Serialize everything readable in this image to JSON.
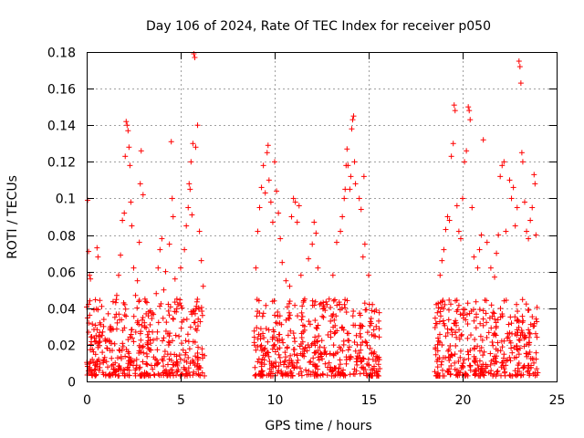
{
  "chart_data": {
    "type": "scatter",
    "title": "Day 106 of 2024, Rate Of TEC Index for receiver p050",
    "xlabel": "GPS time / hours",
    "ylabel": "ROTI / TECUs",
    "xlim": [
      0,
      25
    ],
    "ylim": [
      0,
      0.18
    ],
    "x_ticks": [
      0,
      5,
      10,
      15,
      20,
      25
    ],
    "x_tick_labels": [
      "0",
      "5",
      "10",
      "15",
      "20",
      "25"
    ],
    "y_ticks": [
      0,
      0.02,
      0.04,
      0.06,
      0.08,
      0.1,
      0.12,
      0.14,
      0.16,
      0.18
    ],
    "y_tick_labels": [
      "0",
      "0.02",
      "0.04",
      "0.06",
      "0.08",
      "0.1",
      "0.12",
      "0.14",
      "0.16",
      "0.18"
    ],
    "grid": true,
    "marker": "+",
    "color": "#ff0000",
    "observation_windows_hours": [
      [
        0,
        6.3
      ],
      [
        8.9,
        15.6
      ],
      [
        18.5,
        24
      ]
    ],
    "series": [
      {
        "name": "ROTI",
        "points": [
          [
            0.05,
            0.099
          ],
          [
            0.1,
            0.071
          ],
          [
            0.15,
            0.058
          ],
          [
            0.2,
            0.056
          ],
          [
            0.3,
            0.012
          ],
          [
            0.4,
            0.004
          ],
          [
            0.5,
            0.025
          ],
          [
            0.55,
            0.073
          ],
          [
            0.6,
            0.068
          ],
          [
            0.7,
            0.032
          ],
          [
            0.8,
            0.041
          ],
          [
            0.9,
            0.03
          ],
          [
            1.0,
            0.022
          ],
          [
            1.1,
            0.018
          ],
          [
            1.3,
            0.029
          ],
          [
            1.5,
            0.035
          ],
          [
            1.6,
            0.047
          ],
          [
            1.7,
            0.058
          ],
          [
            1.8,
            0.069
          ],
          [
            1.9,
            0.088
          ],
          [
            2.0,
            0.092
          ],
          [
            2.05,
            0.123
          ],
          [
            2.1,
            0.142
          ],
          [
            2.15,
            0.14
          ],
          [
            2.2,
            0.137
          ],
          [
            2.25,
            0.128
          ],
          [
            2.3,
            0.118
          ],
          [
            2.35,
            0.098
          ],
          [
            2.4,
            0.085
          ],
          [
            2.5,
            0.062
          ],
          [
            2.6,
            0.047
          ],
          [
            2.7,
            0.055
          ],
          [
            2.8,
            0.076
          ],
          [
            2.85,
            0.108
          ],
          [
            2.9,
            0.126
          ],
          [
            3.0,
            0.102
          ],
          [
            3.1,
            0.045
          ],
          [
            3.3,
            0.038
          ],
          [
            3.5,
            0.027
          ],
          [
            3.7,
            0.048
          ],
          [
            3.8,
            0.062
          ],
          [
            3.9,
            0.072
          ],
          [
            4.0,
            0.078
          ],
          [
            4.1,
            0.05
          ],
          [
            4.2,
            0.06
          ],
          [
            4.4,
            0.075
          ],
          [
            4.5,
            0.131
          ],
          [
            4.55,
            0.1
          ],
          [
            4.6,
            0.09
          ],
          [
            4.7,
            0.056
          ],
          [
            4.8,
            0.045
          ],
          [
            5.0,
            0.062
          ],
          [
            5.2,
            0.072
          ],
          [
            5.3,
            0.085
          ],
          [
            5.4,
            0.095
          ],
          [
            5.45,
            0.108
          ],
          [
            5.5,
            0.105
          ],
          [
            5.55,
            0.12
          ],
          [
            5.6,
            0.091
          ],
          [
            5.65,
            0.13
          ],
          [
            5.7,
            0.179
          ],
          [
            5.75,
            0.177
          ],
          [
            5.8,
            0.128
          ],
          [
            5.9,
            0.14
          ],
          [
            6.0,
            0.082
          ],
          [
            6.1,
            0.066
          ],
          [
            6.2,
            0.052
          ],
          [
            9.0,
            0.062
          ],
          [
            9.1,
            0.082
          ],
          [
            9.2,
            0.095
          ],
          [
            9.3,
            0.106
          ],
          [
            9.4,
            0.118
          ],
          [
            9.5,
            0.103
          ],
          [
            9.6,
            0.125
          ],
          [
            9.65,
            0.129
          ],
          [
            9.7,
            0.11
          ],
          [
            9.8,
            0.098
          ],
          [
            9.9,
            0.087
          ],
          [
            10.0,
            0.12
          ],
          [
            10.1,
            0.104
          ],
          [
            10.2,
            0.092
          ],
          [
            10.3,
            0.078
          ],
          [
            10.4,
            0.065
          ],
          [
            10.6,
            0.055
          ],
          [
            10.8,
            0.052
          ],
          [
            10.9,
            0.09
          ],
          [
            11.0,
            0.1
          ],
          [
            11.1,
            0.098
          ],
          [
            11.2,
            0.087
          ],
          [
            11.3,
            0.096
          ],
          [
            11.4,
            0.058
          ],
          [
            11.6,
            0.045
          ],
          [
            11.8,
            0.067
          ],
          [
            12.0,
            0.075
          ],
          [
            12.1,
            0.087
          ],
          [
            12.2,
            0.081
          ],
          [
            12.3,
            0.062
          ],
          [
            12.4,
            0.042
          ],
          [
            12.6,
            0.035
          ],
          [
            12.9,
            0.045
          ],
          [
            13.1,
            0.058
          ],
          [
            13.3,
            0.076
          ],
          [
            13.5,
            0.082
          ],
          [
            13.6,
            0.09
          ],
          [
            13.7,
            0.1
          ],
          [
            13.75,
            0.105
          ],
          [
            13.8,
            0.118
          ],
          [
            13.85,
            0.127
          ],
          [
            13.9,
            0.118
          ],
          [
            14.0,
            0.105
          ],
          [
            14.05,
            0.112
          ],
          [
            14.1,
            0.138
          ],
          [
            14.15,
            0.143
          ],
          [
            14.2,
            0.145
          ],
          [
            14.25,
            0.12
          ],
          [
            14.3,
            0.108
          ],
          [
            14.5,
            0.1
          ],
          [
            14.6,
            0.094
          ],
          [
            14.7,
            0.068
          ],
          [
            14.75,
            0.112
          ],
          [
            14.8,
            0.075
          ],
          [
            15.0,
            0.058
          ],
          [
            15.2,
            0.042
          ],
          [
            15.4,
            0.03
          ],
          [
            18.6,
            0.042
          ],
          [
            18.8,
            0.058
          ],
          [
            18.9,
            0.066
          ],
          [
            19.0,
            0.072
          ],
          [
            19.1,
            0.083
          ],
          [
            19.2,
            0.09
          ],
          [
            19.3,
            0.088
          ],
          [
            19.4,
            0.123
          ],
          [
            19.5,
            0.13
          ],
          [
            19.55,
            0.151
          ],
          [
            19.6,
            0.148
          ],
          [
            19.7,
            0.096
          ],
          [
            19.8,
            0.082
          ],
          [
            19.9,
            0.078
          ],
          [
            20.0,
            0.1
          ],
          [
            20.1,
            0.12
          ],
          [
            20.2,
            0.126
          ],
          [
            20.3,
            0.15
          ],
          [
            20.35,
            0.148
          ],
          [
            20.4,
            0.143
          ],
          [
            20.5,
            0.095
          ],
          [
            20.6,
            0.068
          ],
          [
            20.8,
            0.062
          ],
          [
            20.9,
            0.072
          ],
          [
            21.0,
            0.08
          ],
          [
            21.1,
            0.132
          ],
          [
            21.3,
            0.076
          ],
          [
            21.5,
            0.062
          ],
          [
            21.7,
            0.057
          ],
          [
            21.8,
            0.07
          ],
          [
            21.9,
            0.08
          ],
          [
            22.0,
            0.112
          ],
          [
            22.1,
            0.118
          ],
          [
            22.2,
            0.12
          ],
          [
            22.3,
            0.082
          ],
          [
            22.5,
            0.11
          ],
          [
            22.6,
            0.1
          ],
          [
            22.7,
            0.106
          ],
          [
            22.8,
            0.085
          ],
          [
            22.9,
            0.095
          ],
          [
            23.0,
            0.175
          ],
          [
            23.05,
            0.172
          ],
          [
            23.1,
            0.163
          ],
          [
            23.15,
            0.125
          ],
          [
            23.2,
            0.12
          ],
          [
            23.3,
            0.098
          ],
          [
            23.4,
            0.082
          ],
          [
            23.5,
            0.078
          ],
          [
            23.6,
            0.088
          ],
          [
            23.7,
            0.095
          ],
          [
            23.8,
            0.113
          ],
          [
            23.85,
            0.108
          ],
          [
            23.9,
            0.08
          ]
        ],
        "dense_band": {
          "description": "dense cluster of points",
          "y_range": [
            0.003,
            0.045
          ]
        }
      }
    ]
  }
}
